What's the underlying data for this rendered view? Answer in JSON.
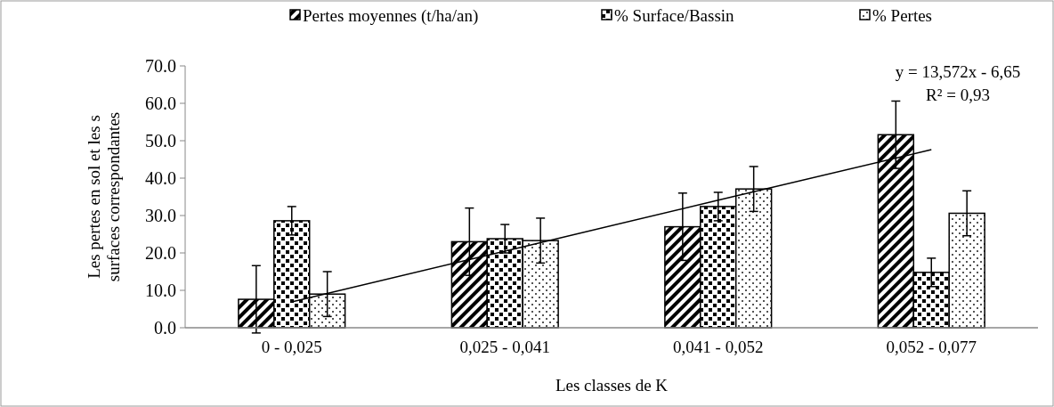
{
  "chart_data": {
    "type": "bar",
    "xlabel": "Les classes de K",
    "ylabel": "Les pertes en sol et les s surfaces correspondantes",
    "categories": [
      "0 - 0,025",
      "0,025 - 0,041",
      "0,041 - 0,052",
      "0,052 - 0,077"
    ],
    "series": [
      {
        "name": "Pertes moyennes (t/ha/an)",
        "color": "#000000",
        "values": [
          7.6,
          23.0,
          27.0,
          51.6
        ],
        "errors": [
          9,
          9,
          9,
          9
        ]
      },
      {
        "name": "% Surface/Bassin",
        "color": "#000000",
        "values": [
          28.6,
          23.8,
          32.4,
          14.8
        ],
        "errors": [
          3.8,
          3.8,
          3.8,
          3.8
        ]
      },
      {
        "name": "% Pertes",
        "color": "#000000",
        "values": [
          9.0,
          23.3,
          37.1,
          30.6
        ],
        "errors": [
          6,
          6,
          6,
          6
        ]
      },
      {
        "type": "line",
        "color": "#000000",
        "x": [
          "0 - 0,025",
          "0,025 - 0,041",
          "0,041 - 0,052",
          "0,052 - 0,077"
        ],
        "values": [
          6.9,
          20.5,
          34.1,
          47.6
        ]
      }
    ],
    "annotations": [
      "y = 13,572x - 6,65",
      "R² = 0,93"
    ],
    "ylim": [
      0,
      70
    ],
    "yticks": [
      {
        "value": 0,
        "label": "0.0"
      },
      {
        "value": 10,
        "label": "10.0"
      },
      {
        "value": 20,
        "label": "20.0"
      },
      {
        "value": 30,
        "label": "30.0"
      },
      {
        "value": 40,
        "label": "40.0"
      },
      {
        "value": 50,
        "label": "50.0"
      },
      {
        "value": 60,
        "label": "60.0"
      },
      {
        "value": 70,
        "label": "70.0"
      }
    ],
    "grid": false,
    "legend": "top",
    "marker": "none",
    "line_style": "solid"
  }
}
